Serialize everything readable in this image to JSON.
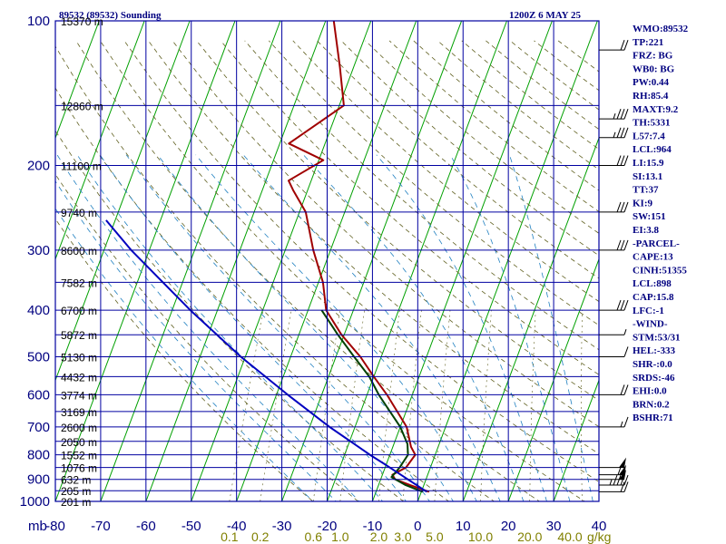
{
  "header": {
    "station": "89532 (89532) Sounding",
    "valid_time": "1200Z  6 MAY 25"
  },
  "stats": [
    "WMO:89532",
    "TP:221",
    "FRZ: BG",
    "WB0: BG",
    "PW:0.44",
    "RH:85.4",
    "MAXT:9.2",
    "TH:5331",
    "L57:7.4",
    "LCL:964",
    "LI:15.9",
    "SI:13.1",
    "TT:37",
    "KI:9",
    "SW:151",
    "EI:3.8",
    "-PARCEL-",
    "CAPE:13",
    "CINH:51355",
    "LCL:898",
    "CAP:15.8",
    "LFC:-1",
    "-WIND-",
    "STM:53/31",
    "HEL:-333",
    "SHR-:0.0",
    "SRDS:-46",
    "EHI:0.0",
    "BRN:0.2",
    "BSHR:71"
  ],
  "colors": {
    "grid": "#0000a0",
    "isotherm": "#00a000",
    "dry_adiabat": "#606020",
    "moist_adiabat": "#2080c0",
    "temperature": "#a00000",
    "dewpoint": "#004000",
    "parcel": "#0000c0",
    "axis_text": "#000080",
    "height_text": "#000000",
    "mixing_text": "#808000"
  },
  "chart_data": {
    "type": "line",
    "title": "89532 (89532) Sounding",
    "subtitle": "1200Z  6 MAY 25",
    "x_axis": {
      "unit_label": "mb",
      "ticks": [
        "-80",
        "-70",
        "-60",
        "-50",
        "-40",
        "-30",
        "-20",
        "-10",
        "0",
        "10",
        "20",
        "30",
        "40"
      ],
      "range": [
        -80,
        40
      ]
    },
    "y_axis": {
      "scale": "log",
      "range": [
        1000,
        100
      ],
      "pressure_ticks": [
        "100",
        "200",
        "300",
        "400",
        "500",
        "600",
        "700",
        "800",
        "900",
        "1000"
      ]
    },
    "height_labels": [
      {
        "p": 100,
        "label": "15370 m"
      },
      {
        "p": 150,
        "label": "12860 m"
      },
      {
        "p": 200,
        "label": "11100 m"
      },
      {
        "p": 250,
        "label": "9740 m"
      },
      {
        "p": 300,
        "label": "8600 m"
      },
      {
        "p": 350,
        "label": "7582 m"
      },
      {
        "p": 400,
        "label": "6700 m"
      },
      {
        "p": 450,
        "label": "5872 m"
      },
      {
        "p": 500,
        "label": "5130 m"
      },
      {
        "p": 550,
        "label": "4432 m"
      },
      {
        "p": 600,
        "label": "3774 m"
      },
      {
        "p": 650,
        "label": "3169 m"
      },
      {
        "p": 700,
        "label": "2600 m"
      },
      {
        "p": 750,
        "label": "2050 m"
      },
      {
        "p": 800,
        "label": "1552 m"
      },
      {
        "p": 850,
        "label": "1076 m"
      },
      {
        "p": 900,
        "label": "632 m"
      },
      {
        "p": 950,
        "label": "205 m"
      },
      {
        "p": 1000,
        "label": "201 m"
      }
    ],
    "mixing_ratio_ticks": [
      "0.1",
      "0.2",
      "0.6",
      "1.0",
      "2.0",
      "3.0",
      "5.0",
      "10.0",
      "20.0",
      "40.0"
    ],
    "mixing_ratio_unit": "g/kg",
    "mixing_ratio_values": [
      0.1,
      0.2,
      0.6,
      1.0,
      2.0,
      3.0,
      5.0,
      10.0,
      20.0,
      40.0
    ],
    "series": [
      {
        "name": "temperature",
        "points": [
          {
            "p": 955,
            "t": 1.7
          },
          {
            "p": 925,
            "t": -3.0
          },
          {
            "p": 900,
            "t": -6.8
          },
          {
            "p": 880,
            "t": -7.8
          },
          {
            "p": 850,
            "t": -5.4
          },
          {
            "p": 800,
            "t": -4.4
          },
          {
            "p": 770,
            "t": -6.0
          },
          {
            "p": 700,
            "t": -8.6
          },
          {
            "p": 600,
            "t": -15.6
          },
          {
            "p": 550,
            "t": -20.0
          },
          {
            "p": 500,
            "t": -24.6
          },
          {
            "p": 450,
            "t": -30.6
          },
          {
            "p": 400,
            "t": -36.0
          },
          {
            "p": 350,
            "t": -39.0
          },
          {
            "p": 300,
            "t": -43.8
          },
          {
            "p": 250,
            "t": -48.6
          },
          {
            "p": 225,
            "t": -53.2
          },
          {
            "p": 215,
            "t": -55.0
          },
          {
            "p": 195,
            "t": -49.0
          },
          {
            "p": 180,
            "t": -58.0
          },
          {
            "p": 150,
            "t": -49.0
          },
          {
            "p": 125,
            "t": -53.0
          },
          {
            "p": 100,
            "t": -58.2
          }
        ]
      },
      {
        "name": "dewpoint",
        "points": [
          {
            "p": 955,
            "t": 0.3
          },
          {
            "p": 925,
            "t": -4.0
          },
          {
            "p": 890,
            "t": -7.8
          },
          {
            "p": 850,
            "t": -6.8
          },
          {
            "p": 800,
            "t": -6.0
          },
          {
            "p": 760,
            "t": -7.0
          },
          {
            "p": 700,
            "t": -10.0
          },
          {
            "p": 600,
            "t": -17.4
          },
          {
            "p": 550,
            "t": -21.0
          },
          {
            "p": 500,
            "t": -26.0
          },
          {
            "p": 450,
            "t": -31.4
          },
          {
            "p": 400,
            "t": -37.0
          }
        ]
      },
      {
        "name": "parcel",
        "points": [
          {
            "p": 955,
            "t": 1.2
          },
          {
            "p": 900,
            "t": -4.0
          },
          {
            "p": 850,
            "t": -9.0
          },
          {
            "p": 840,
            "t": -10.0
          },
          {
            "p": 800,
            "t": -14.4
          },
          {
            "p": 700,
            "t": -25.6
          },
          {
            "p": 600,
            "t": -37.5
          },
          {
            "p": 500,
            "t": -51.0
          },
          {
            "p": 400,
            "t": -66.0
          },
          {
            "p": 300,
            "t": -84.0
          },
          {
            "p": 260,
            "t": -92.0
          }
        ]
      }
    ],
    "wind_barbs": [
      {
        "p": 115,
        "speed_kt": 20
      },
      {
        "p": 160,
        "speed_kt": 35
      },
      {
        "p": 175,
        "speed_kt": 35
      },
      {
        "p": 200,
        "speed_kt": 30
      },
      {
        "p": 250,
        "speed_kt": 30
      },
      {
        "p": 300,
        "speed_kt": 30
      },
      {
        "p": 400,
        "speed_kt": 30
      },
      {
        "p": 450,
        "speed_kt": 5
      },
      {
        "p": 500,
        "speed_kt": 10
      },
      {
        "p": 600,
        "speed_kt": 20
      },
      {
        "p": 700,
        "speed_kt": 15
      },
      {
        "p": 850,
        "speed_kt": 50
      },
      {
        "p": 880,
        "speed_kt": 60
      },
      {
        "p": 900,
        "speed_kt": 50
      },
      {
        "p": 925,
        "speed_kt": 45
      },
      {
        "p": 955,
        "speed_kt": 20
      }
    ]
  }
}
